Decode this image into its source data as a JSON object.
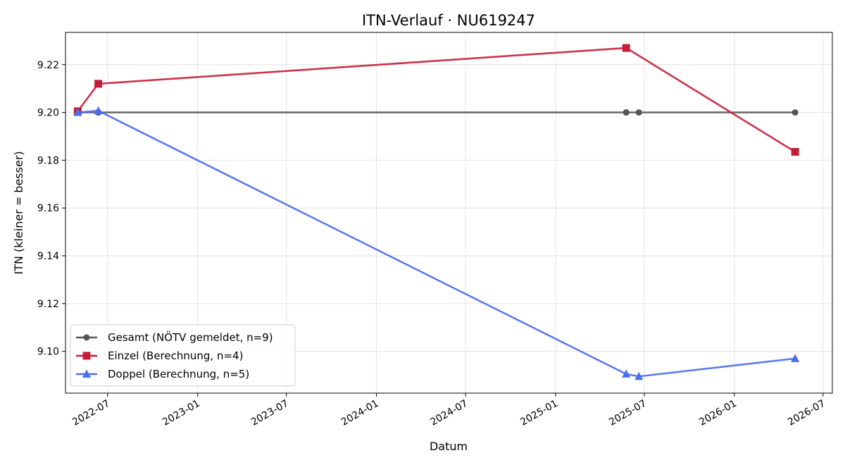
{
  "chart_data": {
    "type": "line",
    "title": "ITN-Verlauf · NU619247",
    "xlabel": "Datum",
    "ylabel": "ITN  (kleiner = besser)",
    "x_axis_type": "date",
    "xlim": [
      "2022-04-06",
      "2026-07-20"
    ],
    "ylim": [
      9.0825,
      9.2335
    ],
    "x_ticks": [
      "2022-07-01",
      "2023-01-01",
      "2023-07-01",
      "2024-01-01",
      "2024-07-01",
      "2025-01-01",
      "2025-07-01",
      "2026-01-01",
      "2026-07-01"
    ],
    "x_tick_labels": [
      "2022-07",
      "2023-01",
      "2023-07",
      "2024-01",
      "2024-07",
      "2025-01",
      "2025-07",
      "2026-01",
      "2026-07"
    ],
    "y_ticks": [
      9.1,
      9.12,
      9.14,
      9.16,
      9.18,
      9.2,
      9.22
    ],
    "y_tick_labels": [
      "9.10",
      "9.12",
      "9.14",
      "9.16",
      "9.18",
      "9.20",
      "9.22"
    ],
    "grid": true,
    "legend_position": "lower-left",
    "series": [
      {
        "name": "Gesamt (NÖTV gemeldet, n=9)",
        "color": "#555555",
        "marker": "circle",
        "points": [
          {
            "x": "2022-05-01",
            "y": 9.2
          },
          {
            "x": "2022-05-01",
            "y": 9.2
          },
          {
            "x": "2022-05-01",
            "y": 9.2
          },
          {
            "x": "2022-06-12",
            "y": 9.2
          },
          {
            "x": "2022-06-12",
            "y": 9.2
          },
          {
            "x": "2025-05-25",
            "y": 9.2
          },
          {
            "x": "2025-05-25",
            "y": 9.2
          },
          {
            "x": "2025-06-20",
            "y": 9.2
          },
          {
            "x": "2026-05-05",
            "y": 9.2
          }
        ]
      },
      {
        "name": "Einzel (Berechnung, n=4)",
        "color": "#c41e3a",
        "marker": "square",
        "points": [
          {
            "x": "2022-05-01",
            "y": 9.2005
          },
          {
            "x": "2022-06-12",
            "y": 9.212
          },
          {
            "x": "2025-05-25",
            "y": 9.227
          },
          {
            "x": "2026-05-05",
            "y": 9.1835
          }
        ]
      },
      {
        "name": "Doppel (Berechnung, n=5)",
        "color": "#4a6cf0",
        "marker": "triangle",
        "points": [
          {
            "x": "2022-05-01",
            "y": 9.2
          },
          {
            "x": "2022-06-12",
            "y": 9.2007
          },
          {
            "x": "2025-05-25",
            "y": 9.0905
          },
          {
            "x": "2025-06-20",
            "y": 9.0895
          },
          {
            "x": "2026-05-05",
            "y": 9.097
          }
        ]
      }
    ]
  }
}
